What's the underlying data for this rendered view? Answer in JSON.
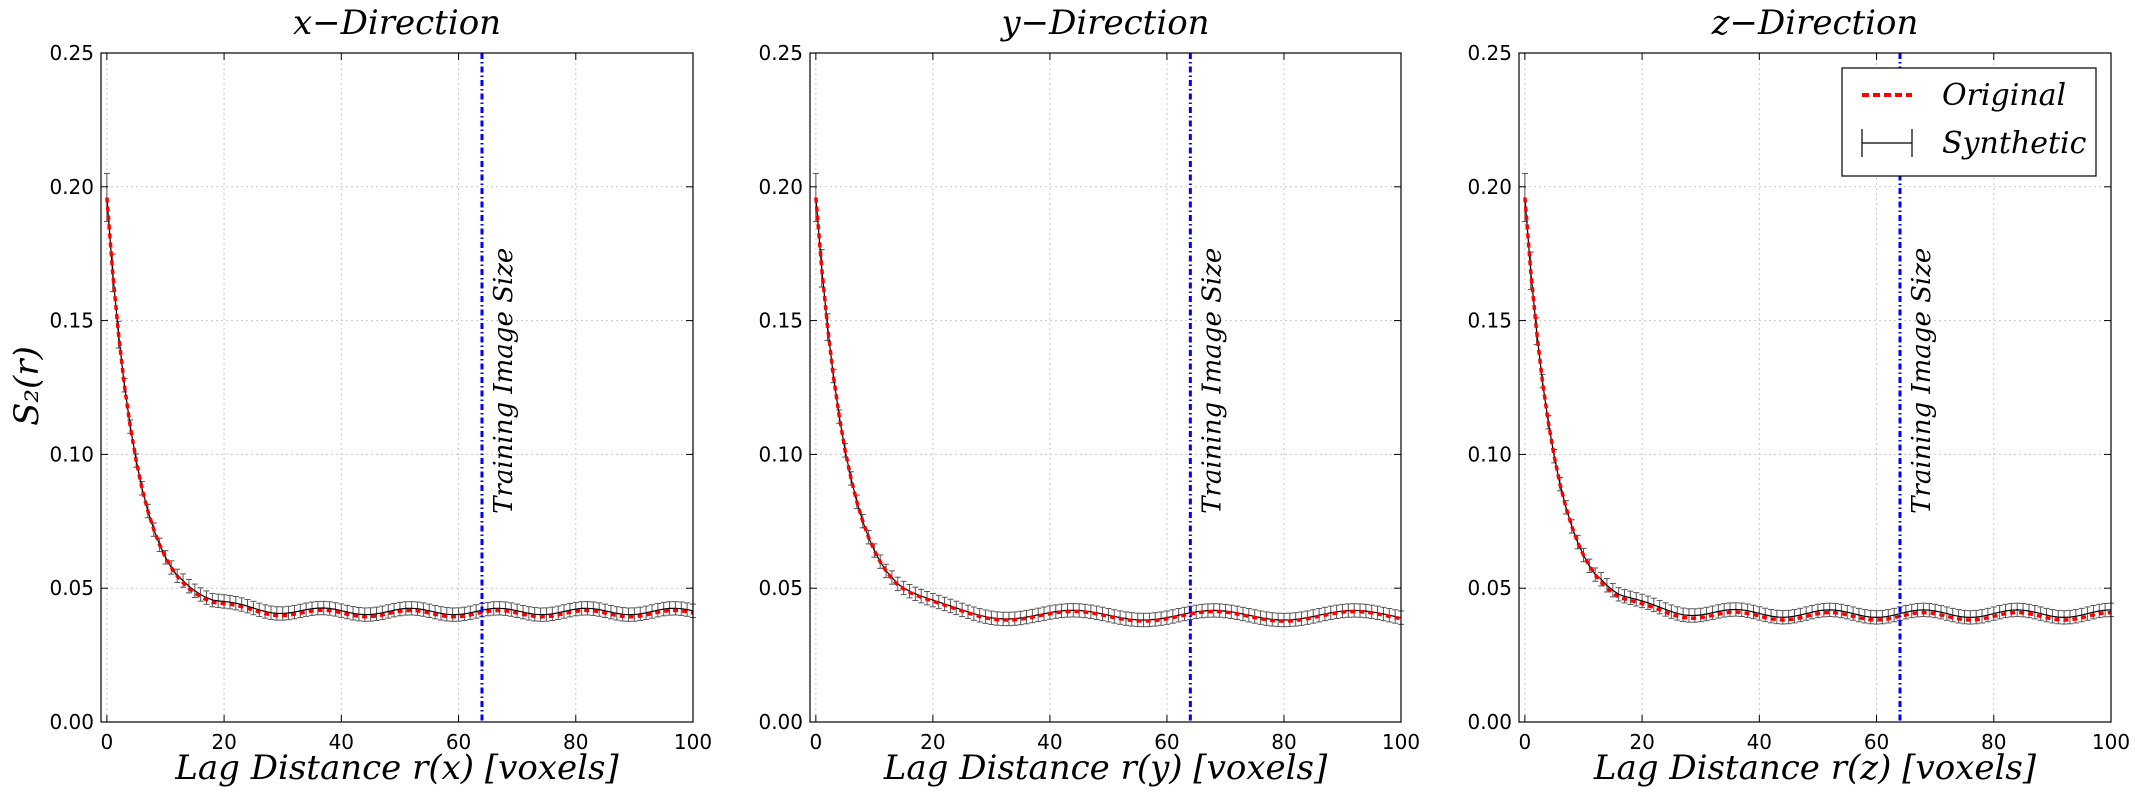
{
  "chart_data": {
    "type": "line",
    "shared": {
      "ylabel": "S₂(r)",
      "ylim": [
        0,
        0.25
      ],
      "xlim": [
        -1,
        100
      ],
      "x_ticks": [
        0,
        20,
        40,
        60,
        80,
        100
      ],
      "y_ticks": [
        0.0,
        0.05,
        0.1,
        0.15,
        0.2,
        0.25
      ],
      "y_tick_labels": [
        "0.00",
        "0.05",
        "0.10",
        "0.15",
        "0.20",
        "0.25"
      ],
      "grid": true,
      "annotation": "Training Image Size",
      "training_image_size": 64,
      "errorbar_halfwidth": 0.0025,
      "colors": {
        "original": "#ff0000",
        "synthetic": "#000000",
        "errorbar": "#555555",
        "vline": "#0000ff",
        "grid": "#c8c8c8"
      },
      "legend": {
        "location": "upper right",
        "panel": 2,
        "entries": [
          "Original",
          "Synthetic"
        ]
      },
      "series_names": [
        "Original",
        "Synthetic"
      ]
    },
    "panels": [
      {
        "title": "x−Direction",
        "xlabel": "Lag Distance r(x) [voxels]",
        "decay_floor": 0.0405,
        "decay_scale": 5.0,
        "osc_period": 15,
        "osc_amp": 0.0012,
        "osc_start": 18,
        "synthetic_offset": 0.0008
      },
      {
        "title": "y−Direction",
        "xlabel": "Lag Distance r(y) [voxels]",
        "decay_floor": 0.0395,
        "decay_scale": 5.4,
        "osc_period": 24,
        "osc_amp": 0.0018,
        "osc_start": 14,
        "synthetic_offset": 0.0004
      },
      {
        "title": "z−Direction",
        "xlabel": "Lag Distance r(z) [voxels]",
        "decay_floor": 0.0395,
        "decay_scale": 5.2,
        "osc_period": 16,
        "osc_amp": 0.0014,
        "osc_start": 16,
        "synthetic_offset": 0.001
      }
    ]
  }
}
